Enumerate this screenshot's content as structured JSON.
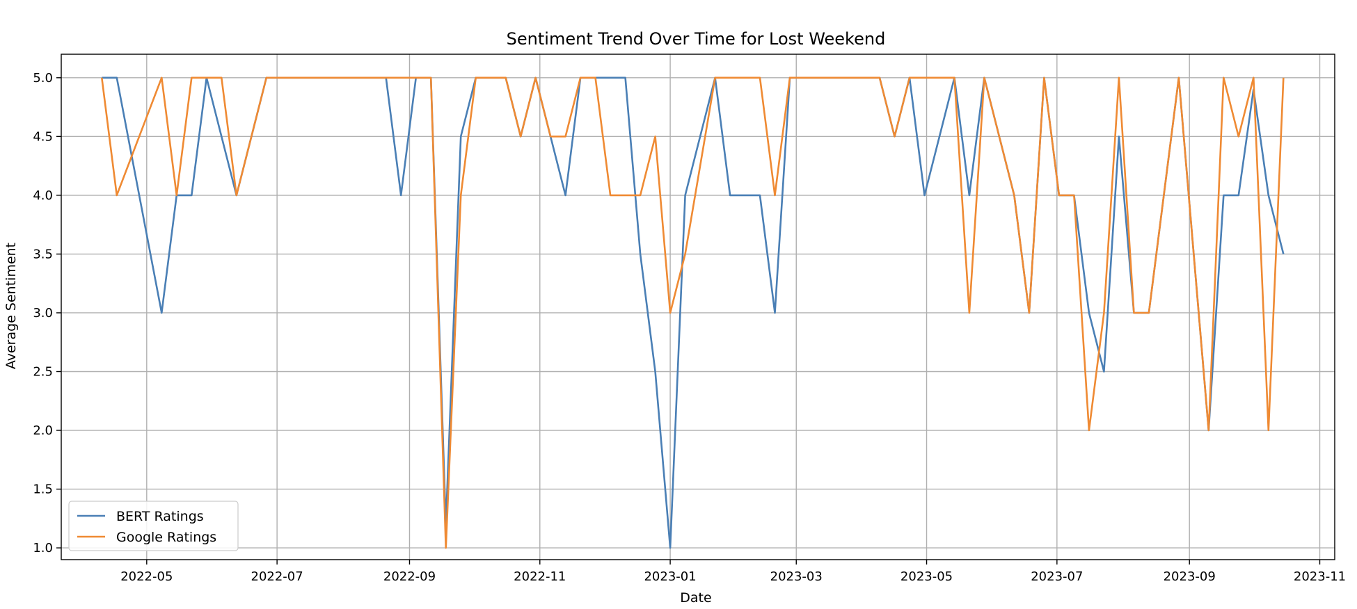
{
  "chart_data": {
    "type": "line",
    "title": "Sentiment Trend Over Time for Lost Weekend",
    "xlabel": "Date",
    "ylabel": "Average Sentiment",
    "xlim": [
      "2022-03-22",
      "2023-11-08"
    ],
    "ylim": [
      0.9,
      5.2
    ],
    "x_ticks": [
      "2022-05",
      "2022-07",
      "2022-09",
      "2022-11",
      "2023-01",
      "2023-03",
      "2023-05",
      "2023-07",
      "2023-09",
      "2023-11"
    ],
    "y_ticks": [
      "1.0",
      "1.5",
      "2.0",
      "2.5",
      "3.0",
      "3.5",
      "4.0",
      "4.5",
      "5.0"
    ],
    "grid": true,
    "legend": "lower-left",
    "x": [
      "2022-04-10",
      "2022-04-17",
      "2022-05-08",
      "2022-05-15",
      "2022-05-22",
      "2022-05-29",
      "2022-06-05",
      "2022-06-12",
      "2022-06-26",
      "2022-08-21",
      "2022-08-28",
      "2022-09-04",
      "2022-09-11",
      "2022-09-18",
      "2022-09-25",
      "2022-10-02",
      "2022-10-16",
      "2022-10-23",
      "2022-10-30",
      "2022-11-06",
      "2022-11-13",
      "2022-11-20",
      "2022-11-27",
      "2022-12-04",
      "2022-12-11",
      "2022-12-18",
      "2022-12-25",
      "2023-01-01",
      "2023-01-08",
      "2023-01-22",
      "2023-01-29",
      "2023-02-12",
      "2023-02-19",
      "2023-02-26",
      "2023-04-09",
      "2023-04-16",
      "2023-04-23",
      "2023-04-30",
      "2023-05-14",
      "2023-05-21",
      "2023-05-28",
      "2023-06-11",
      "2023-06-18",
      "2023-06-25",
      "2023-07-02",
      "2023-07-09",
      "2023-07-16",
      "2023-07-23",
      "2023-07-30",
      "2023-08-06",
      "2023-08-13",
      "2023-08-27",
      "2023-09-10",
      "2023-09-17",
      "2023-09-24",
      "2023-10-01",
      "2023-10-08",
      "2023-10-15"
    ],
    "series": [
      {
        "name": "BERT Ratings",
        "color": "#4a7fb5",
        "values": [
          5,
          5,
          3,
          4,
          4,
          5,
          4.5,
          4,
          5,
          5,
          4,
          5,
          5,
          1.2,
          4.5,
          5,
          5,
          4.5,
          5,
          4.5,
          4,
          5,
          5,
          5,
          5,
          3.5,
          2.5,
          1,
          4,
          5,
          4,
          4,
          3,
          5,
          5,
          4.5,
          5,
          4,
          5,
          4,
          5,
          4,
          3,
          5,
          4,
          4,
          3,
          2.5,
          4.5,
          3,
          3,
          5,
          2,
          4,
          4,
          4.9,
          4,
          3.5
        ]
      },
      {
        "name": "Google Ratings",
        "color": "#ef8a33",
        "values": [
          5,
          4,
          5,
          4,
          5,
          5,
          5,
          4,
          5,
          5,
          5,
          5,
          5,
          1,
          4,
          5,
          5,
          4.5,
          5,
          4.5,
          4.5,
          5,
          5,
          4,
          4,
          4,
          4.5,
          3,
          3.5,
          5,
          5,
          5,
          4,
          5,
          5,
          4.5,
          5,
          5,
          5,
          3,
          5,
          4,
          3,
          5,
          4,
          4,
          2,
          3,
          5,
          3,
          3,
          5,
          2,
          5,
          4.5,
          5,
          2,
          5
        ]
      }
    ]
  }
}
